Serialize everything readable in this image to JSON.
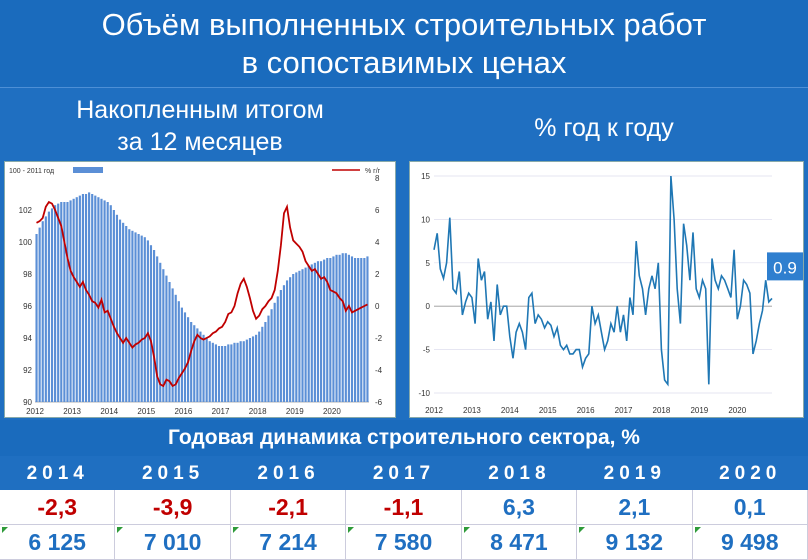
{
  "header": {
    "title_line1": "Объём выполненных строительных работ",
    "title_line2": "в сопоставимых ценах"
  },
  "subheaders": {
    "left_line1": "Накопленным итогом",
    "left_line2": "за 12 месяцев",
    "right": "% год к году"
  },
  "colors": {
    "background": "#1f6fc1",
    "bar": "#5b8fd6",
    "red_line": "#c00000",
    "blue_line": "#1f77b4",
    "negative_value": "#c00000",
    "positive_value": "#1f6fc1"
  },
  "chart_data": [
    {
      "type": "bar",
      "title": "",
      "legend": [
        {
          "name": "100 - 2011 год",
          "kind": "bar"
        },
        {
          "name": "% г/г",
          "kind": "line"
        }
      ],
      "x_ticks": [
        "2012",
        "2013",
        "2014",
        "2015",
        "2016",
        "2017",
        "2018",
        "2019",
        "2020"
      ],
      "y_left": {
        "range": [
          90,
          104
        ],
        "ticks": [
          "90",
          "92",
          "94",
          "96",
          "98",
          "100",
          "102"
        ]
      },
      "y_right": {
        "range": [
          -6,
          8
        ],
        "ticks": [
          "-6",
          "-4",
          "-2",
          "0",
          "2",
          "4",
          "6",
          "8"
        ]
      },
      "series": [
        {
          "name": "100 - 2011 год",
          "axis": "left",
          "values": [
            100.5,
            100.9,
            101.3,
            101.6,
            101.9,
            102.1,
            102.3,
            102.4,
            102.5,
            102.5,
            102.5,
            102.6,
            102.7,
            102.8,
            102.9,
            103.0,
            103.0,
            103.1,
            103.0,
            102.9,
            102.8,
            102.7,
            102.6,
            102.5,
            102.3,
            102.0,
            101.7,
            101.4,
            101.2,
            101.0,
            100.8,
            100.7,
            100.6,
            100.5,
            100.4,
            100.3,
            100.1,
            99.8,
            99.5,
            99.1,
            98.7,
            98.3,
            97.9,
            97.5,
            97.1,
            96.7,
            96.3,
            95.9,
            95.6,
            95.3,
            95.0,
            94.8,
            94.6,
            94.4,
            94.2,
            94.0,
            93.8,
            93.7,
            93.6,
            93.5,
            93.5,
            93.5,
            93.6,
            93.6,
            93.7,
            93.7,
            93.8,
            93.8,
            93.9,
            94.0,
            94.1,
            94.2,
            94.4,
            94.7,
            95.0,
            95.4,
            95.8,
            96.2,
            96.6,
            97.0,
            97.3,
            97.6,
            97.8,
            98.0,
            98.1,
            98.2,
            98.3,
            98.4,
            98.5,
            98.6,
            98.7,
            98.8,
            98.8,
            98.9,
            99.0,
            99.0,
            99.1,
            99.2,
            99.2,
            99.3,
            99.3,
            99.2,
            99.1,
            99.0,
            99.0,
            99.0,
            99.0,
            99.1
          ]
        },
        {
          "name": "% г/г",
          "axis": "right",
          "values": [
            5.2,
            5.3,
            5.5,
            6.2,
            6.5,
            6.4,
            6.0,
            5.5,
            5.0,
            4.0,
            3.0,
            2.2,
            1.8,
            1.5,
            1.2,
            1.5,
            1.0,
            0.7,
            0.3,
            0.2,
            -0.1,
            0.4,
            -0.4,
            -0.3,
            -0.8,
            -1.3,
            -1.7,
            -2.0,
            -2.3,
            -2.0,
            -2.3,
            -2.6,
            -2.4,
            -2.3,
            -2.1,
            -2.0,
            -1.7,
            -2.2,
            -3.2,
            -4.4,
            -4.9,
            -5.0,
            -4.6,
            -4.7,
            -5.0,
            -4.9,
            -4.5,
            -4.2,
            -3.9,
            -3.5,
            -2.8,
            -2.2,
            -1.8,
            -2.0,
            -2.1,
            -2.0,
            -1.9,
            -1.7,
            -1.6,
            -1.4,
            -1.3,
            -1.0,
            -0.5,
            -0.4,
            0.0,
            0.8,
            1.4,
            1.7,
            1.2,
            0.5,
            -0.3,
            -0.8,
            -0.6,
            -0.2,
            0.0,
            0.3,
            0.5,
            1.0,
            2.2,
            3.8,
            5.8,
            6.2,
            4.9,
            4.1,
            3.9,
            3.7,
            3.4,
            2.8,
            2.5,
            2.2,
            2.3,
            2.0,
            1.7,
            1.8,
            1.5,
            1.0,
            0.9,
            0.8,
            0.5,
            0.3,
            -0.3,
            0.0,
            -0.4,
            -0.3,
            -0.2,
            -0.1,
            0.0,
            0.1
          ]
        }
      ]
    },
    {
      "type": "line",
      "title": "",
      "x_ticks": [
        "2012",
        "2013",
        "2014",
        "2015",
        "2016",
        "2017",
        "2018",
        "2019",
        "2020"
      ],
      "y_range": [
        -10,
        15
      ],
      "y_ticks": [
        "-10",
        "-5",
        "0",
        "5",
        "10",
        "15"
      ],
      "end_label": "0.9",
      "series": [
        {
          "name": "",
          "values": [
            6.5,
            8.4,
            4.3,
            3.2,
            5.0,
            10.2,
            2.0,
            1.5,
            4.0,
            -1.0,
            0.5,
            1.5,
            1.0,
            -2.0,
            5.5,
            3.0,
            4.0,
            -1.5,
            0.5,
            -4.0,
            2.5,
            -1.0,
            0.0,
            0.0,
            -3.5,
            -6.0,
            -3.0,
            -2.0,
            -3.0,
            -5.0,
            1.0,
            1.5,
            -2.0,
            -1.0,
            -1.5,
            -2.5,
            -1.8,
            -2.2,
            -3.5,
            -2.5,
            -4.5,
            -5.0,
            -4.5,
            -5.5,
            -5.5,
            -5.0,
            -5.0,
            -7.0,
            -6.0,
            -5.5,
            0.0,
            -2.0,
            -1.0,
            -3.0,
            -5.0,
            -4.0,
            -2.0,
            -3.0,
            0.0,
            -3.0,
            -1.0,
            -4.0,
            1.0,
            -1.0,
            7.5,
            3.5,
            2.0,
            -1.0,
            2.0,
            3.5,
            2.0,
            5.0,
            -5.0,
            -8.5,
            -9.0,
            15.0,
            10.0,
            2.0,
            -2.0,
            9.5,
            7.0,
            3.0,
            8.5,
            2.0,
            1.0,
            3.0,
            2.0,
            -9.0,
            5.5,
            3.0,
            2.0,
            3.5,
            3.0,
            2.0,
            1.0,
            6.5,
            -1.5,
            0.0,
            3.0,
            2.5,
            1.5,
            -5.5,
            -4.0,
            -2.0,
            -0.5,
            3.0,
            0.5,
            0.9
          ]
        }
      ]
    }
  ],
  "table": {
    "title": "Годовая динамика строительного сектора, %",
    "columns": [
      {
        "year": "2014",
        "pct": "-2,3",
        "sign": "neg",
        "count": "6 125"
      },
      {
        "year": "2015",
        "pct": "-3,9",
        "sign": "neg",
        "count": "7 010"
      },
      {
        "year": "2016",
        "pct": "-2,1",
        "sign": "neg",
        "count": "7 214"
      },
      {
        "year": "2017",
        "pct": "-1,1",
        "sign": "neg",
        "count": "7 580"
      },
      {
        "year": "2018",
        "pct": "6,3",
        "sign": "pos",
        "count": "8 471"
      },
      {
        "year": "2019",
        "pct": "2,1",
        "sign": "pos",
        "count": "9 132"
      },
      {
        "year": "2020",
        "pct": "0,1",
        "sign": "pos",
        "count": "9 498"
      }
    ]
  }
}
